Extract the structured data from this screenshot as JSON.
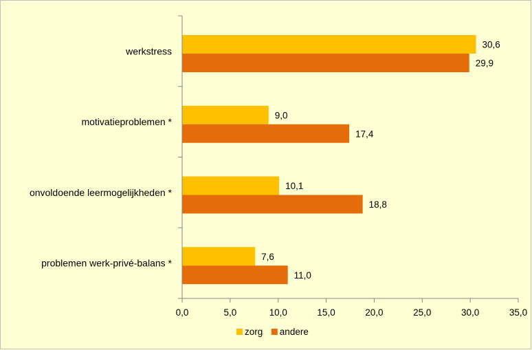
{
  "chart_data": {
    "type": "bar",
    "orientation": "horizontal",
    "categories": [
      "werkstress",
      "motivatieproblemen *",
      "onvoldoende leermogelijkheden *",
      "problemen werk-privé-balans *"
    ],
    "series": [
      {
        "name": "zorg",
        "color": "#FFC000",
        "values": [
          30.6,
          9.0,
          10.1,
          7.6
        ],
        "labels": [
          "30,6",
          "9,0",
          "10,1",
          "7,6"
        ]
      },
      {
        "name": "andere",
        "color": "#E46C0A",
        "values": [
          29.9,
          17.4,
          18.8,
          11.0
        ],
        "labels": [
          "29,9",
          "17,4",
          "18,8",
          "11,0"
        ]
      }
    ],
    "xlim": [
      0,
      35
    ],
    "xticks": [
      "0,0",
      "5,0",
      "10,0",
      "15,0",
      "20,0",
      "25,0",
      "30,0",
      "35,0"
    ],
    "grid": false,
    "legend_position": "bottom",
    "background_color": "#FFFFD4"
  }
}
